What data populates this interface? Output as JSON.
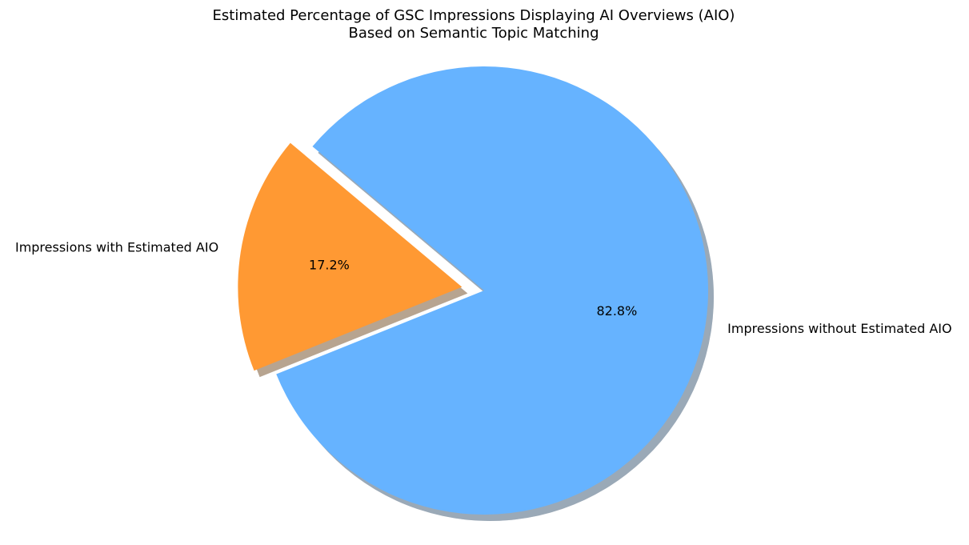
{
  "chart_data": {
    "type": "pie",
    "title": [
      "Estimated Percentage of GSC Impressions Displaying AI Overviews (AIO)",
      "Based on Semantic Topic Matching"
    ],
    "categories": [
      "Impressions with Estimated AIO",
      "Impressions without Estimated AIO"
    ],
    "values": [
      17.2,
      82.8
    ],
    "value_labels": [
      "17.2%",
      "82.8%"
    ],
    "colors": [
      "#ff9933",
      "#66b3ff"
    ],
    "shadow": true
  }
}
